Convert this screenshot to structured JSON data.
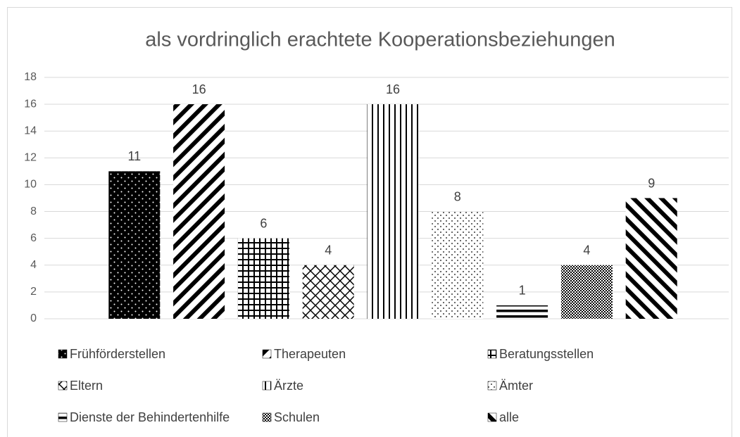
{
  "chart_data": {
    "type": "bar",
    "title": "als vordringlich erachtete Kooperationsbeziehungen",
    "series": [
      {
        "name": "Frühförderstellen",
        "color": "#000000",
        "values": [
          11
        ]
      },
      {
        "name": "Therapeuten",
        "color": "#000000",
        "values": [
          16
        ]
      },
      {
        "name": "Beratungsstellen",
        "color": "#000000",
        "values": [
          6
        ]
      },
      {
        "name": "Eltern",
        "color": "#000000",
        "values": [
          4
        ]
      },
      {
        "name": "Ärzte",
        "color": "#000000",
        "values": [
          16
        ]
      },
      {
        "name": "Ämter",
        "color": "#000000",
        "values": [
          8
        ]
      },
      {
        "name": "Dienste der Behindertenhilfe",
        "color": "#000000",
        "values": [
          1
        ]
      },
      {
        "name": "Schulen",
        "color": "#000000",
        "values": [
          4
        ]
      },
      {
        "name": "alle",
        "color": "#000000",
        "values": [
          9
        ]
      }
    ],
    "ylim": [
      0,
      18
    ],
    "yticks": [
      0,
      2,
      4,
      6,
      8,
      10,
      12,
      14,
      16,
      18
    ],
    "grid": true,
    "legend": "bottom"
  }
}
